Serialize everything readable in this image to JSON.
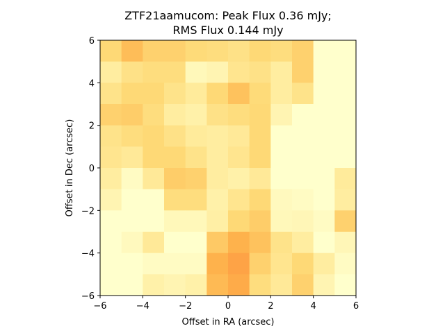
{
  "chart_data": {
    "type": "heatmap",
    "title_line1": "ZTF21aamucom: Peak Flux 0.36 mJy;",
    "title_line2": "RMS Flux 0.144 mJy",
    "xlabel": "Offset in RA (arcsec)",
    "ylabel": "Offset in Dec (arcsec)",
    "xlim": [
      -6,
      6
    ],
    "ylim": [
      -6,
      6
    ],
    "xticks": [
      -6,
      -4,
      -2,
      0,
      2,
      4,
      6
    ],
    "yticks": [
      -6,
      -4,
      -2,
      0,
      2,
      4,
      6
    ],
    "xtick_labels": [
      "−6",
      "−4",
      "−2",
      "0",
      "2",
      "4",
      "6"
    ],
    "ytick_labels": [
      "−6",
      "−4",
      "−2",
      "0",
      "2",
      "4",
      "6"
    ],
    "colormap": [
      "#ffffcc",
      "#ffeda0",
      "#fed976",
      "#feb24c",
      "#fd8d3c"
    ],
    "grid_rows": 12,
    "grid_cols": 12,
    "values": [
      [
        0.5,
        0.68,
        0.55,
        0.55,
        0.48,
        0.45,
        0.4,
        0.5,
        0.45,
        0.55,
        0.0,
        0.0
      ],
      [
        0.25,
        0.4,
        0.45,
        0.45,
        0.1,
        0.15,
        0.35,
        0.4,
        0.25,
        0.55,
        0.0,
        0.0
      ],
      [
        0.38,
        0.5,
        0.5,
        0.38,
        0.28,
        0.5,
        0.65,
        0.48,
        0.25,
        0.38,
        0.0,
        0.0
      ],
      [
        0.55,
        0.58,
        0.45,
        0.25,
        0.2,
        0.4,
        0.45,
        0.5,
        0.15,
        0.0,
        0.0,
        0.0
      ],
      [
        0.38,
        0.45,
        0.5,
        0.4,
        0.28,
        0.25,
        0.3,
        0.5,
        0.0,
        0.0,
        0.0,
        0.0
      ],
      [
        0.35,
        0.3,
        0.5,
        0.5,
        0.38,
        0.25,
        0.35,
        0.5,
        0.0,
        0.0,
        0.0,
        0.0
      ],
      [
        0.25,
        0.05,
        0.3,
        0.58,
        0.55,
        0.25,
        0.2,
        0.3,
        0.0,
        0.0,
        0.0,
        0.28
      ],
      [
        0.15,
        0.0,
        0.0,
        0.45,
        0.45,
        0.2,
        0.35,
        0.5,
        0.08,
        0.05,
        0.0,
        0.25
      ],
      [
        0.0,
        0.0,
        0.0,
        0.1,
        0.1,
        0.22,
        0.5,
        0.58,
        0.1,
        0.12,
        0.05,
        0.55
      ],
      [
        0.0,
        0.08,
        0.3,
        0.0,
        0.0,
        0.6,
        0.75,
        0.65,
        0.38,
        0.25,
        0.0,
        0.12
      ],
      [
        0.0,
        0.0,
        0.05,
        0.05,
        0.05,
        0.75,
        0.85,
        0.55,
        0.35,
        0.5,
        0.25,
        0.05
      ],
      [
        0.0,
        0.0,
        0.2,
        0.15,
        0.2,
        0.7,
        0.8,
        0.45,
        0.3,
        0.55,
        0.15,
        0.0
      ]
    ]
  }
}
